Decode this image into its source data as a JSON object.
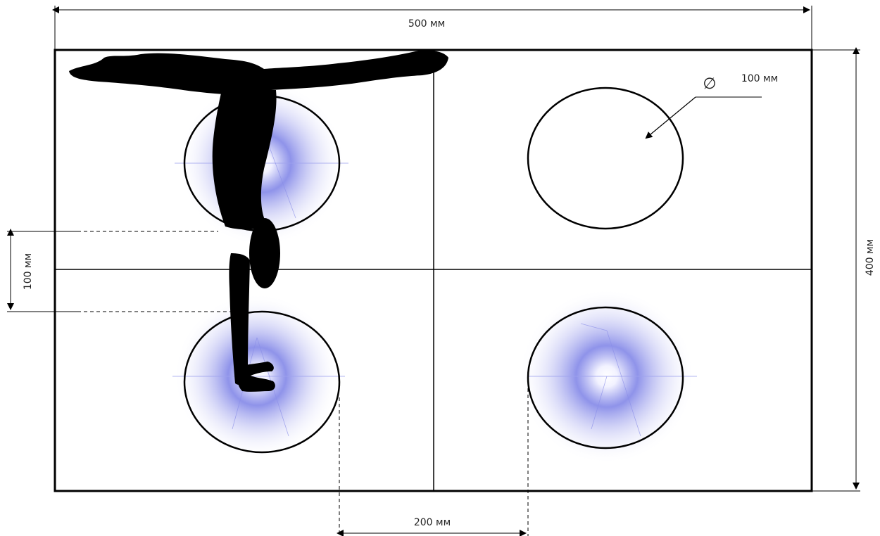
{
  "dimensions": {
    "width_label": "500 мм",
    "height_label": "400 мм",
    "gap_label": "200 мм",
    "offset_label": "100 мм",
    "diameter_label": "100 мм",
    "diameter_symbol": "∅"
  },
  "colors": {
    "line": "#000000",
    "silhouette": "#000000",
    "glow_center": "#ffffff",
    "glow_mid": "#8a8ee8",
    "glow_edge": "#ffffff"
  },
  "icons": {
    "silhouette": "handstand-gymnast-silhouette",
    "light": "light-glow-icon"
  }
}
